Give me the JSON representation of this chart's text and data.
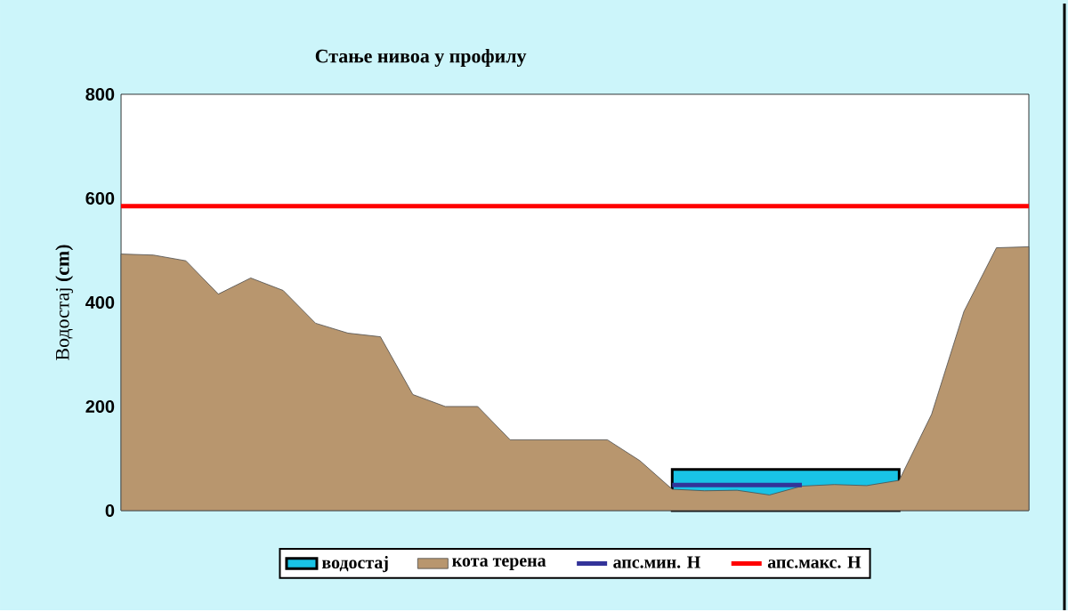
{
  "chart_data": {
    "type": "area",
    "title": "Стање нивоа у профилу",
    "ylabel": "Водостај **(cm)**",
    "categories": [
      null,
      null,
      null,
      null,
      null,
      null,
      null,
      null,
      null,
      null,
      null,
      null,
      null,
      null,
      null,
      null,
      null,
      null,
      null,
      null,
      null,
      null,
      null,
      null,
      null,
      null,
      null,
      null,
      null
    ],
    "series": [
      {
        "name": "водостај",
        "color": "#19c3e6",
        "values": [
          null,
          null,
          null,
          null,
          null,
          null,
          null,
          null,
          null,
          null,
          null,
          null,
          null,
          null,
          null,
          null,
          null,
          79,
          79,
          79,
          79,
          79,
          79,
          79,
          79,
          null,
          null,
          null,
          null
        ]
      },
      {
        "name": "кота терена",
        "color": "#b8966e",
        "values": [
          493,
          491,
          480,
          416,
          447,
          423,
          360,
          341,
          334,
          223,
          200,
          200,
          136,
          136,
          136,
          136,
          96,
          41,
          38,
          39,
          30,
          47,
          50,
          48,
          58,
          185,
          383,
          505,
          507
        ]
      },
      {
        "name": "апс.мин. H",
        "type": "line",
        "color": "#333399",
        "values": [
          null,
          null,
          null,
          null,
          null,
          null,
          null,
          null,
          null,
          null,
          null,
          null,
          null,
          null,
          null,
          null,
          null,
          49,
          49,
          49,
          49,
          49,
          null,
          null,
          null,
          null,
          null,
          null,
          null
        ]
      },
      {
        "name": "апс.макс. H",
        "type": "line",
        "color": "#ff0000",
        "values": [
          585,
          585,
          585,
          585,
          585,
          585,
          585,
          585,
          585,
          585,
          585,
          585,
          585,
          585,
          585,
          585,
          585,
          585,
          585,
          585,
          585,
          585,
          585,
          585,
          585,
          585,
          585,
          585,
          585
        ]
      }
    ],
    "ylim": [
      0,
      800
    ],
    "yticks": [
      0,
      200,
      400,
      600,
      800
    ],
    "grid": false,
    "legend": "bottom"
  }
}
